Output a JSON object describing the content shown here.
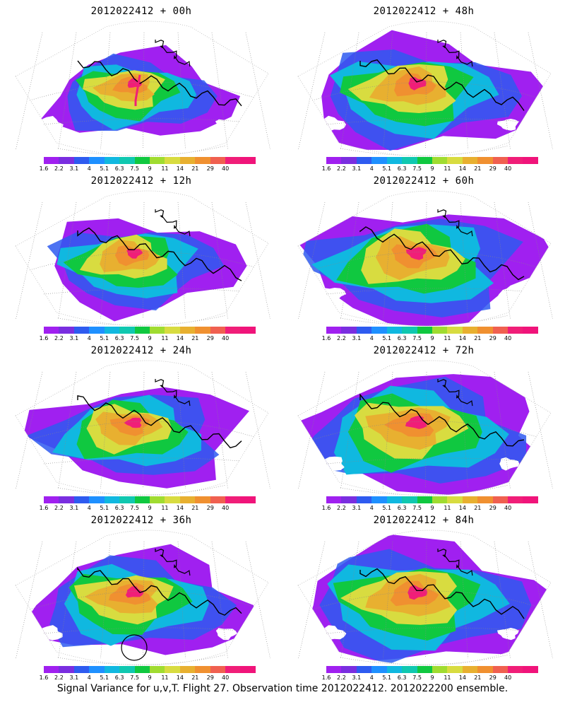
{
  "panels": [
    {
      "title": "2012022412 + 00h",
      "lead_hours": 0
    },
    {
      "title": "2012022412 + 48h",
      "lead_hours": 48
    },
    {
      "title": "2012022412 + 12h",
      "lead_hours": 12
    },
    {
      "title": "2012022412 + 60h",
      "lead_hours": 60
    },
    {
      "title": "2012022412 + 24h",
      "lead_hours": 24
    },
    {
      "title": "2012022412 + 72h",
      "lead_hours": 72
    },
    {
      "title": "2012022412 + 36h",
      "lead_hours": 36
    },
    {
      "title": "2012022412 + 84h",
      "lead_hours": 84
    }
  ],
  "colorbar": {
    "labels": [
      "1.6",
      "2.2",
      "3.1",
      "4",
      "5.1",
      "6.3",
      "7.5",
      "9",
      "11",
      "14",
      "21",
      "29",
      "40"
    ],
    "colors": [
      "#a020f0",
      "#7a2ee0",
      "#2e5bf0",
      "#1e90ff",
      "#10b8e0",
      "#10c8b0",
      "#10c840",
      "#a0dc30",
      "#d8dc40",
      "#e8b030",
      "#f09030",
      "#f06050",
      "#f01e78",
      "#f0147a"
    ]
  },
  "caption": "Signal Variance for u,v,T. Flight 27. Observation time 2012022412. 2012022200 ensemble."
}
